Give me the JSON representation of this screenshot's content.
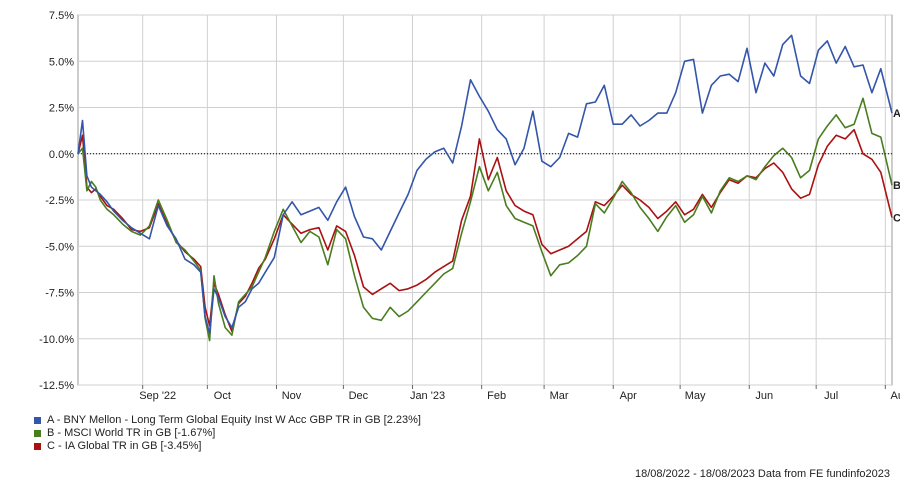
{
  "chart_data": {
    "type": "line",
    "title": "",
    "xlabel": "",
    "ylabel": "",
    "ylim": [
      -12.5,
      7.5
    ],
    "y_ticks": [
      7.5,
      5.0,
      2.5,
      0.0,
      -2.5,
      -5.0,
      -7.5,
      -10.0,
      -12.5
    ],
    "y_tick_labels": [
      "7.5%",
      "5.0%",
      "2.5%",
      "0.0%",
      "-2.5%",
      "-5.0%",
      "-7.5%",
      "-10.0%",
      "-12.5%"
    ],
    "x_range": [
      0,
      365
    ],
    "x_ticks": [
      {
        "label": "Sep '22",
        "x": 29
      },
      {
        "label": "Oct",
        "x": 58
      },
      {
        "label": "Nov",
        "x": 89
      },
      {
        "label": "Dec",
        "x": 119
      },
      {
        "label": "Jan '23",
        "x": 150
      },
      {
        "label": "Feb",
        "x": 181
      },
      {
        "label": "Mar",
        "x": 209
      },
      {
        "label": "Apr",
        "x": 240
      },
      {
        "label": "May",
        "x": 270
      },
      {
        "label": "Jun",
        "x": 301
      },
      {
        "label": "Jul",
        "x": 331
      },
      {
        "label": "Aug",
        "x": 362
      }
    ],
    "grid": true,
    "legend_position": "bottom-left",
    "series": [
      {
        "name": "A - BNY Mellon - Long Term Global Equity Inst W Acc GBP TR in GB [2.23%]",
        "end_label": "A",
        "color": "#3355aa",
        "x": [
          0,
          2,
          4,
          6,
          8,
          10,
          13,
          16,
          20,
          24,
          28,
          32,
          36,
          40,
          44,
          48,
          52,
          55,
          57,
          59,
          61,
          63,
          66,
          69,
          72,
          75,
          78,
          81,
          84,
          88,
          92,
          96,
          100,
          104,
          108,
          112,
          116,
          120,
          124,
          128,
          132,
          136,
          140,
          144,
          148,
          152,
          156,
          160,
          164,
          168,
          172,
          176,
          180,
          184,
          188,
          192,
          196,
          200,
          204,
          208,
          212,
          216,
          220,
          224,
          228,
          232,
          236,
          240,
          244,
          248,
          252,
          256,
          260,
          264,
          268,
          272,
          276,
          280,
          284,
          288,
          292,
          296,
          300,
          304,
          308,
          312,
          316,
          320,
          324,
          328,
          332,
          336,
          340,
          344,
          348,
          352,
          356,
          360,
          365
        ],
        "y": [
          0,
          1.8,
          -1.2,
          -1.8,
          -2.0,
          -2.2,
          -2.6,
          -3.1,
          -3.6,
          -4.0,
          -4.3,
          -4.6,
          -2.8,
          -3.9,
          -4.6,
          -5.7,
          -6.0,
          -6.4,
          -8.8,
          -9.7,
          -7.3,
          -7.8,
          -8.8,
          -9.4,
          -8.3,
          -8.0,
          -7.3,
          -7.0,
          -6.4,
          -5.6,
          -3.3,
          -2.6,
          -3.3,
          -3.1,
          -2.9,
          -3.6,
          -2.6,
          -1.8,
          -3.4,
          -4.5,
          -4.6,
          -5.2,
          -4.2,
          -3.2,
          -2.2,
          -0.9,
          -0.3,
          0.1,
          0.3,
          -0.5,
          1.5,
          4.0,
          3.1,
          2.3,
          1.3,
          0.8,
          -0.6,
          0.3,
          2.3,
          -0.4,
          -0.7,
          -0.2,
          1.1,
          0.9,
          2.7,
          2.8,
          3.7,
          1.6,
          1.6,
          2.1,
          1.5,
          1.8,
          2.2,
          2.2,
          3.3,
          5.0,
          5.1,
          2.2,
          3.7,
          4.2,
          4.3,
          3.9,
          5.7,
          3.3,
          4.9,
          4.2,
          5.9,
          6.4,
          4.2,
          3.8,
          5.6,
          6.1,
          4.9,
          5.8,
          4.7,
          4.8,
          3.3,
          4.6,
          2.2
        ]
      },
      {
        "name": "B - MSCI World TR in GB [-1.67%]",
        "end_label": "B",
        "color": "#4a7d1f",
        "x": [
          0,
          2,
          4,
          6,
          8,
          10,
          13,
          16,
          20,
          24,
          28,
          32,
          36,
          40,
          44,
          48,
          52,
          55,
          57,
          59,
          61,
          63,
          66,
          69,
          72,
          75,
          78,
          81,
          84,
          88,
          92,
          96,
          100,
          104,
          108,
          112,
          116,
          120,
          124,
          128,
          132,
          136,
          140,
          144,
          148,
          152,
          156,
          160,
          164,
          168,
          172,
          176,
          180,
          184,
          188,
          192,
          196,
          200,
          204,
          208,
          212,
          216,
          220,
          224,
          228,
          232,
          236,
          240,
          244,
          248,
          252,
          256,
          260,
          264,
          268,
          272,
          276,
          280,
          284,
          288,
          292,
          296,
          300,
          304,
          308,
          312,
          316,
          320,
          324,
          328,
          332,
          336,
          340,
          344,
          348,
          352,
          356,
          360,
          365
        ],
        "y": [
          0,
          0.3,
          -2.0,
          -1.5,
          -1.8,
          -2.5,
          -3.0,
          -3.3,
          -3.8,
          -4.2,
          -4.4,
          -3.9,
          -2.5,
          -3.6,
          -4.8,
          -5.2,
          -5.8,
          -6.3,
          -8.9,
          -10.1,
          -6.6,
          -8.1,
          -9.4,
          -9.8,
          -8.0,
          -7.6,
          -7.2,
          -6.4,
          -5.6,
          -4.2,
          -3.0,
          -3.9,
          -4.8,
          -4.2,
          -4.5,
          -6.0,
          -4.1,
          -4.6,
          -6.6,
          -8.3,
          -8.9,
          -9.0,
          -8.3,
          -8.8,
          -8.5,
          -8.0,
          -7.5,
          -7.0,
          -6.5,
          -6.2,
          -4.3,
          -2.6,
          -0.7,
          -2.0,
          -1.0,
          -2.8,
          -3.5,
          -3.7,
          -3.9,
          -5.3,
          -6.6,
          -6.0,
          -5.9,
          -5.5,
          -5.0,
          -2.7,
          -3.2,
          -2.4,
          -1.5,
          -2.1,
          -2.9,
          -3.5,
          -4.2,
          -3.4,
          -2.8,
          -3.7,
          -3.3,
          -2.3,
          -3.2,
          -2.0,
          -1.3,
          -1.5,
          -1.2,
          -1.4,
          -0.7,
          -0.1,
          0.3,
          -0.2,
          -1.3,
          -0.9,
          0.8,
          1.5,
          2.1,
          1.4,
          1.6,
          3.0,
          1.1,
          0.9,
          -1.7
        ]
      },
      {
        "name": "C - IA Global TR in GB [-3.45%]",
        "end_label": "C",
        "color": "#aa1111",
        "x": [
          0,
          2,
          4,
          6,
          8,
          10,
          13,
          16,
          20,
          24,
          28,
          32,
          36,
          40,
          44,
          48,
          52,
          55,
          57,
          59,
          61,
          63,
          66,
          69,
          72,
          75,
          78,
          81,
          84,
          88,
          92,
          96,
          100,
          104,
          108,
          112,
          116,
          120,
          124,
          128,
          132,
          136,
          140,
          144,
          148,
          152,
          156,
          160,
          164,
          168,
          172,
          176,
          180,
          184,
          188,
          192,
          196,
          200,
          204,
          208,
          212,
          216,
          220,
          224,
          228,
          232,
          236,
          240,
          244,
          248,
          252,
          256,
          260,
          264,
          268,
          272,
          276,
          280,
          284,
          288,
          292,
          296,
          300,
          304,
          308,
          312,
          316,
          320,
          324,
          328,
          332,
          336,
          340,
          344,
          348,
          352,
          356,
          360,
          365
        ],
        "y": [
          0,
          1.0,
          -1.8,
          -2.1,
          -1.9,
          -2.3,
          -2.8,
          -3.0,
          -3.5,
          -4.1,
          -4.2,
          -4.0,
          -2.7,
          -3.8,
          -4.7,
          -5.3,
          -5.7,
          -6.1,
          -8.3,
          -9.3,
          -7.0,
          -7.6,
          -8.7,
          -9.6,
          -8.1,
          -7.7,
          -7.0,
          -6.2,
          -5.7,
          -4.6,
          -3.3,
          -3.8,
          -4.3,
          -4.1,
          -4.0,
          -5.2,
          -3.9,
          -4.2,
          -5.5,
          -7.2,
          -7.6,
          -7.3,
          -7.0,
          -7.4,
          -7.3,
          -7.1,
          -6.8,
          -6.4,
          -6.1,
          -5.8,
          -3.6,
          -2.3,
          0.8,
          -1.4,
          -0.2,
          -2.0,
          -2.8,
          -3.1,
          -3.3,
          -4.9,
          -5.4,
          -5.2,
          -5.0,
          -4.6,
          -4.2,
          -2.6,
          -2.8,
          -2.3,
          -1.7,
          -2.2,
          -2.5,
          -2.9,
          -3.5,
          -3.1,
          -2.6,
          -3.3,
          -3.0,
          -2.2,
          -2.9,
          -2.1,
          -1.4,
          -1.6,
          -1.2,
          -1.3,
          -0.8,
          -0.5,
          -1.0,
          -1.9,
          -2.4,
          -2.2,
          -0.6,
          0.4,
          1.0,
          0.8,
          1.3,
          0.0,
          -0.3,
          -1.0,
          -3.45
        ]
      }
    ],
    "reference_line": {
      "y": 0.0,
      "style": "dotted"
    }
  },
  "footer": {
    "date_range": "18/08/2022 - 18/08/2023",
    "source": "Data from FE fundinfo2023"
  }
}
